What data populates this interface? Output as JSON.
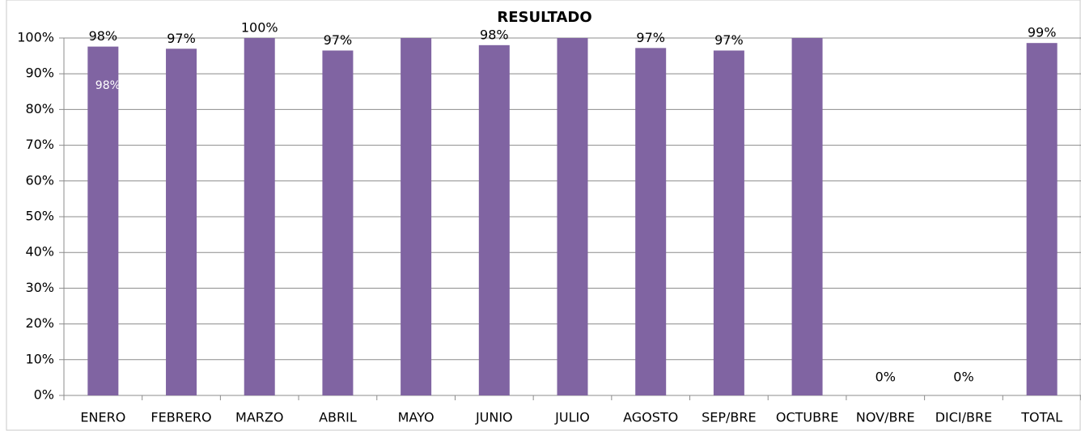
{
  "chart_data": {
    "type": "bar",
    "title": "RESULTADO",
    "categories": [
      "ENERO",
      "FEBRERO",
      "MARZO",
      "ABRIL",
      "MAYO",
      "JUNIO",
      "JULIO",
      "AGOSTO",
      "SEP/BRE",
      "OCTUBRE",
      "NOV/BRE",
      "DICI/BRE",
      "TOTAL"
    ],
    "values": [
      97.6,
      97,
      100,
      96.5,
      100,
      98,
      100,
      97.2,
      96.5,
      100,
      0,
      0,
      98.6
    ],
    "value_labels": [
      "98%",
      "97%",
      "100%",
      "97%",
      null,
      "98%",
      null,
      "97%",
      "97%",
      null,
      "0%",
      "0%",
      "99%"
    ],
    "annotation": "98%",
    "color": "#8064a2",
    "ylim": [
      0,
      100
    ],
    "yticks": [
      {
        "value": 0,
        "label": "0%"
      },
      {
        "value": 10,
        "label": "10%"
      },
      {
        "value": 20,
        "label": "20%"
      },
      {
        "value": 30,
        "label": "30%"
      },
      {
        "value": 40,
        "label": "40%"
      },
      {
        "value": 50,
        "label": "50%"
      },
      {
        "value": 60,
        "label": "60%"
      },
      {
        "value": 70,
        "label": "70%"
      },
      {
        "value": 80,
        "label": "80%"
      },
      {
        "value": 90,
        "label": "90%"
      },
      {
        "value": 100,
        "label": "100%"
      }
    ],
    "grid": true
  }
}
